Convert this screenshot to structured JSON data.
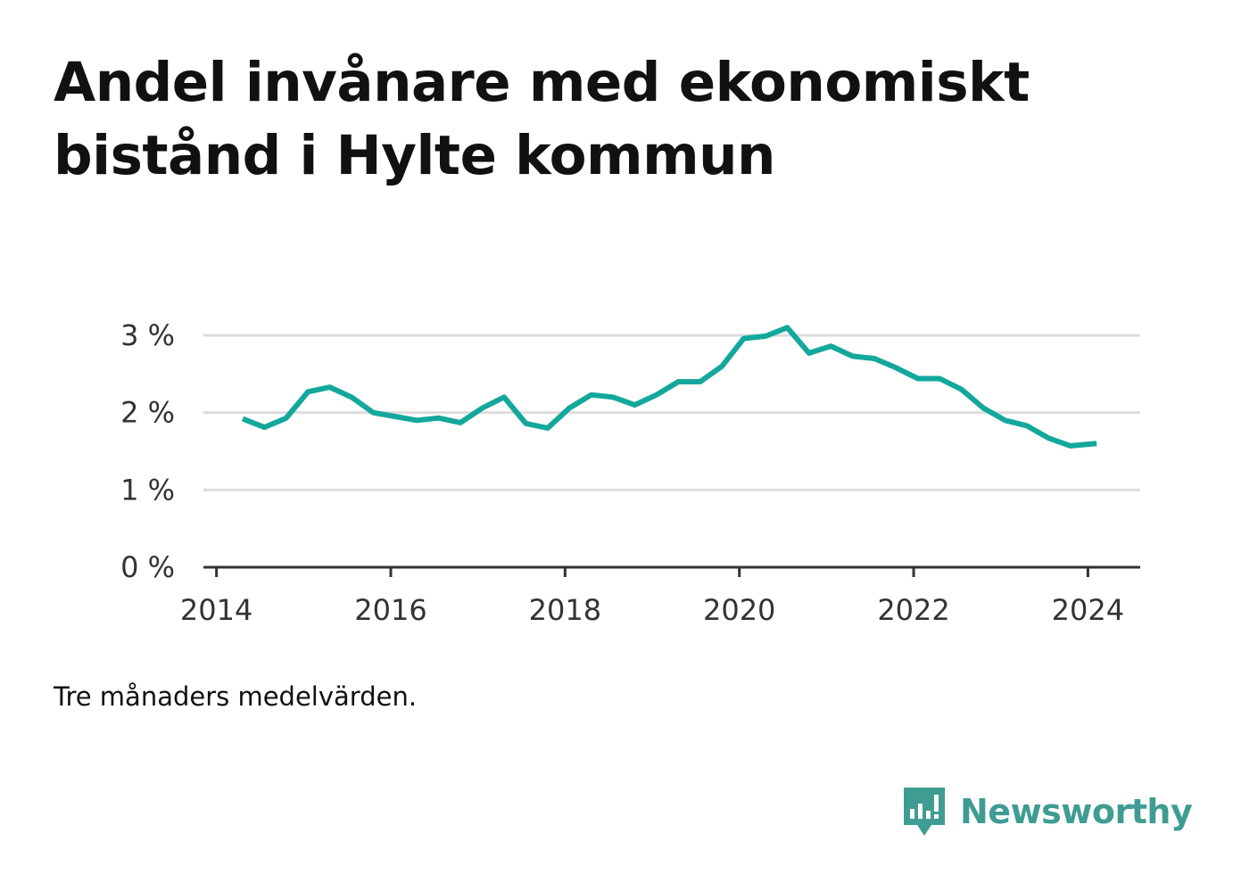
{
  "header": {
    "title": "Andel invånare med ekonomiskt bistånd i Hylte kommun"
  },
  "footer": {
    "note": "Tre månaders medelvärden.",
    "brand_name": "Newsworthy",
    "brand_icon": "bar-chart-speech-bubble-icon",
    "brand_color": "#3f9c93"
  },
  "chart_data": {
    "type": "line",
    "title": "Andel invånare med ekonomiskt bistånd i Hylte kommun",
    "xlabel": "",
    "ylabel": "",
    "x_ticks": [
      {
        "value": 2014,
        "label": "2014"
      },
      {
        "value": 2016,
        "label": "2016"
      },
      {
        "value": 2018,
        "label": "2018"
      },
      {
        "value": 2020,
        "label": "2020"
      },
      {
        "value": 2022,
        "label": "2022"
      },
      {
        "value": 2024,
        "label": "2024"
      }
    ],
    "y_ticks": [
      {
        "value": 0,
        "label": "0 %"
      },
      {
        "value": 1,
        "label": "1 %"
      },
      {
        "value": 2,
        "label": "2 %"
      },
      {
        "value": 3,
        "label": "3 %"
      }
    ],
    "xlim": [
      2013.85,
      2024.6
    ],
    "ylim": [
      0,
      3
    ],
    "grid": true,
    "line_color": "#14a89c",
    "series": [
      {
        "name": "",
        "x": [
          2014.3,
          2014.55,
          2014.8,
          2015.05,
          2015.3,
          2015.55,
          2015.8,
          2016.05,
          2016.3,
          2016.55,
          2016.8,
          2017.05,
          2017.3,
          2017.55,
          2017.8,
          2018.05,
          2018.3,
          2018.55,
          2018.8,
          2019.05,
          2019.3,
          2019.55,
          2019.8,
          2020.05,
          2020.3,
          2020.55,
          2020.8,
          2021.05,
          2021.3,
          2021.55,
          2021.8,
          2022.05,
          2022.3,
          2022.55,
          2022.8,
          2023.05,
          2023.3,
          2023.55,
          2023.8,
          2024.1
        ],
        "values": [
          1.92,
          1.81,
          1.93,
          2.27,
          2.33,
          2.2,
          2.0,
          1.95,
          1.9,
          1.93,
          1.87,
          2.06,
          2.2,
          1.86,
          1.8,
          2.06,
          2.23,
          2.2,
          2.1,
          2.23,
          2.4,
          2.4,
          2.6,
          2.96,
          2.99,
          3.1,
          2.77,
          2.86,
          2.73,
          2.7,
          2.58,
          2.44,
          2.44,
          2.3,
          2.06,
          1.9,
          1.83,
          1.67,
          1.57,
          1.6
        ]
      }
    ]
  }
}
